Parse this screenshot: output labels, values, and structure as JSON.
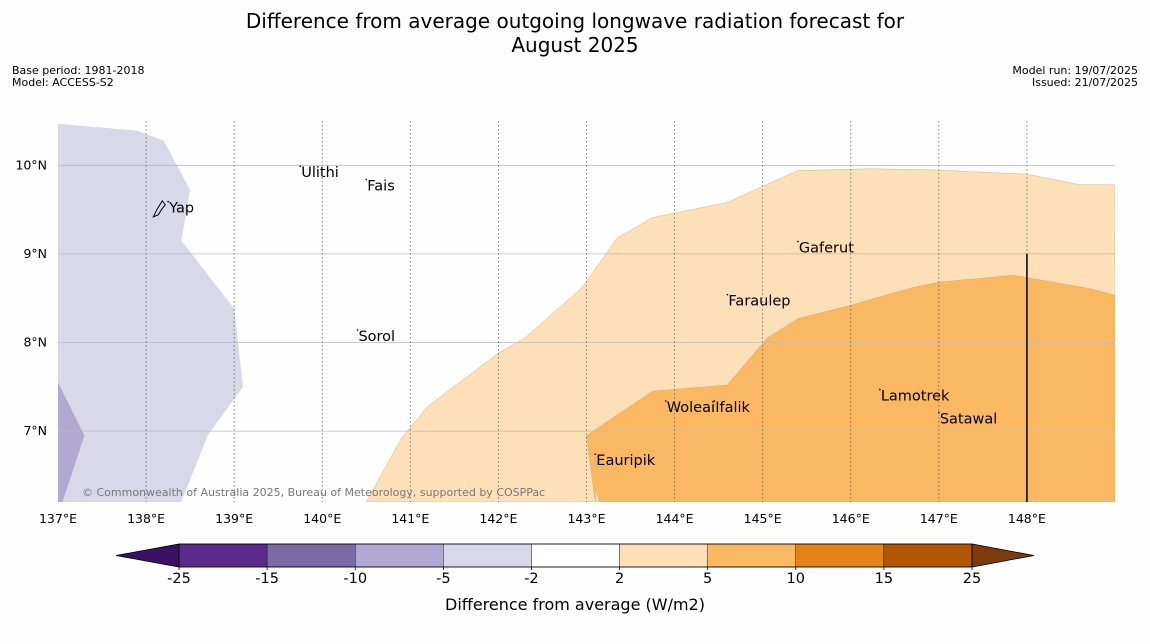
{
  "title_line1": "Difference from average outgoing longwave radiation forecast for",
  "title_line2": "August 2025",
  "base_period": "Base period: 1981-2018",
  "model": "Model: ACCESS-S2",
  "model_run": "Model run: 19/07/2025",
  "issued": "Issued: 21/07/2025",
  "copyright": "© Commonwealth of Australia 2025, Bureau of Meteorology, supported by COSPPac",
  "map": {
    "lon_range": [
      137,
      149
    ],
    "lat_range": [
      6.2,
      10.5
    ],
    "grid": "on",
    "lon_ticks": [
      {
        "value": 137,
        "label": "137°E"
      },
      {
        "value": 138,
        "label": "138°E"
      },
      {
        "value": 139,
        "label": "139°E"
      },
      {
        "value": 140,
        "label": "140°E"
      },
      {
        "value": 141,
        "label": "141°E"
      },
      {
        "value": 142,
        "label": "142°E"
      },
      {
        "value": 143,
        "label": "143°E"
      },
      {
        "value": 144,
        "label": "144°E"
      },
      {
        "value": 145,
        "label": "145°E"
      },
      {
        "value": 146,
        "label": "146°E"
      },
      {
        "value": 147,
        "label": "147°E"
      },
      {
        "value": 148,
        "label": "148°E"
      }
    ],
    "lat_ticks": [
      {
        "value": 10,
        "label": "10°N"
      },
      {
        "value": 9,
        "label": "9°N"
      },
      {
        "value": 8,
        "label": "8°N"
      },
      {
        "value": 7,
        "label": "7°N"
      }
    ],
    "places": [
      {
        "name": "Yap",
        "lon": 138.25,
        "lat": 9.5
      },
      {
        "name": "Ulithi",
        "lon": 139.75,
        "lat": 9.9
      },
      {
        "name": "Fais",
        "lon": 140.5,
        "lat": 9.75
      },
      {
        "name": "Gaferut",
        "lon": 145.4,
        "lat": 9.05
      },
      {
        "name": "Faraulep",
        "lon": 144.6,
        "lat": 8.45
      },
      {
        "name": "Sorol",
        "lon": 140.4,
        "lat": 8.05
      },
      {
        "name": "Woleai",
        "lon": 143.9,
        "lat": 7.25
      },
      {
        "name": "Ifalik",
        "lon": 144.45,
        "lat": 7.25
      },
      {
        "name": "Lamotrek",
        "lon": 146.33,
        "lat": 7.38
      },
      {
        "name": "Satawal",
        "lon": 147.0,
        "lat": 7.12
      },
      {
        "name": "Eauripik",
        "lon": 143.1,
        "lat": 6.65
      }
    ],
    "regions": [
      {
        "category": "-5 to -2",
        "color": "#d8d8e9",
        "outline": [
          [
            137,
            10.47
          ],
          [
            137.9,
            10.39
          ],
          [
            138.2,
            10.28
          ],
          [
            138.5,
            9.72
          ],
          [
            138.4,
            9.15
          ],
          [
            139.0,
            8.38
          ],
          [
            139.1,
            7.5
          ],
          [
            138.7,
            6.95
          ],
          [
            138.4,
            6.2
          ],
          [
            137,
            6.2
          ]
        ]
      },
      {
        "category": "-10 to -5",
        "color": "#b1a9d2",
        "outline": [
          [
            137,
            7.55
          ],
          [
            137.3,
            6.95
          ],
          [
            137.05,
            6.2
          ],
          [
            137,
            6.2
          ]
        ]
      },
      {
        "category": "2 to 5",
        "color": "#fde0b8",
        "outline": [
          [
            140.5,
            6.2
          ],
          [
            140.9,
            6.92
          ],
          [
            141.2,
            7.28
          ],
          [
            142.0,
            7.88
          ],
          [
            142.3,
            8.05
          ],
          [
            142.95,
            8.62
          ],
          [
            143.35,
            9.18
          ],
          [
            143.75,
            9.41
          ],
          [
            144.6,
            9.58
          ],
          [
            144.95,
            9.74
          ],
          [
            145.4,
            9.94
          ],
          [
            146.2,
            9.96
          ],
          [
            146.9,
            9.95
          ],
          [
            148.0,
            9.9
          ],
          [
            148.6,
            9.78
          ],
          [
            149,
            9.78
          ],
          [
            149,
            6.2
          ]
        ]
      },
      {
        "category": "5 to 10",
        "color": "#fbb862",
        "outline": [
          [
            143.1,
            6.2
          ],
          [
            143.0,
            6.95
          ],
          [
            143.75,
            7.45
          ],
          [
            144.6,
            7.52
          ],
          [
            145.05,
            8.05
          ],
          [
            145.4,
            8.27
          ],
          [
            146.0,
            8.42
          ],
          [
            146.7,
            8.62
          ],
          [
            147.0,
            8.68
          ],
          [
            147.85,
            8.76
          ],
          [
            148.75,
            8.6
          ],
          [
            149,
            8.53
          ],
          [
            149,
            6.2
          ],
          [
            143.15,
            6.2
          ],
          [
            143.1,
            6.35
          ]
        ]
      }
    ],
    "meridian_line_lon": 148,
    "meridian_line_lat_top": 9.0
  },
  "colorbar": {
    "label": "Difference from average (W/m2)",
    "colors": [
      "#3a1163",
      "#5a2b8b",
      "#7b6aa6",
      "#b1a9d2",
      "#d8d8e9",
      "#ffffff",
      "#fde0b8",
      "#fbb862",
      "#e48317",
      "#b25606",
      "#7d3a0d"
    ],
    "ticks": [
      "-25",
      "-15",
      "-10",
      "-5",
      "-2",
      "2",
      "5",
      "10",
      "15",
      "25"
    ]
  }
}
